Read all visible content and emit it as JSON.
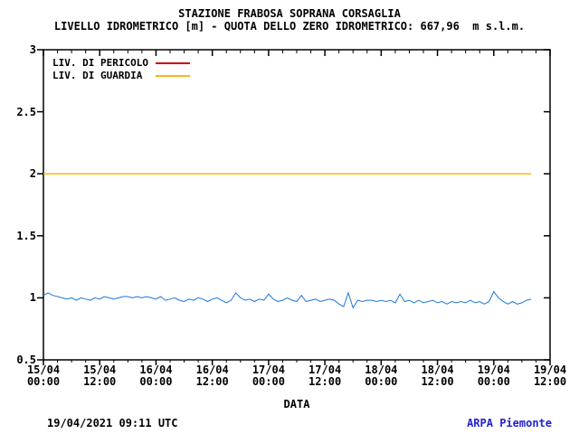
{
  "header": {
    "title": "STAZIONE FRABOSA SOPRANA CORSAGLIA",
    "subtitle": "LIVELLO IDROMETRICO [m] - QUOTA DELLO ZERO IDROMETRICO: 667,96  m s.l.m."
  },
  "footer": {
    "timestamp": "19/04/2021 09:11 UTC",
    "brand": "ARPA Piemonte",
    "brand_color": "#2222cc"
  },
  "chart_data": {
    "type": "line",
    "title": "STAZIONE FRABOSA SOPRANA CORSAGLIA",
    "subtitle": "LIVELLO IDROMETRICO [m] - QUOTA DELLO ZERO IDROMETRICO: 667,96  m s.l.m.",
    "xlabel": "DATA",
    "ylim": [
      0.5,
      3.0
    ],
    "yticks": [
      0.5,
      1,
      1.5,
      2,
      2.5,
      3
    ],
    "x_total_hours": 108,
    "xtick_every_hours": 12,
    "minor_tick_every_hours": 3,
    "xticks": [
      {
        "date": "15/04",
        "time": "00:00"
      },
      {
        "date": "15/04",
        "time": "12:00"
      },
      {
        "date": "16/04",
        "time": "00:00"
      },
      {
        "date": "16/04",
        "time": "12:00"
      },
      {
        "date": "17/04",
        "time": "00:00"
      },
      {
        "date": "17/04",
        "time": "12:00"
      },
      {
        "date": "18/04",
        "time": "00:00"
      },
      {
        "date": "18/04",
        "time": "12:00"
      },
      {
        "date": "19/04",
        "time": "00:00"
      },
      {
        "date": "19/04",
        "time": "12:00"
      }
    ],
    "grid": false,
    "legend_position": "top-left",
    "thresholds": [
      {
        "name": "LIV. DI PERICOLO",
        "color": "#cc0000",
        "value": null
      },
      {
        "name": "LIV. DI GUARDIA",
        "color": "#ffb412",
        "value": 2.0
      }
    ],
    "series": [
      {
        "name": "LIVELLO IDROMETRICO",
        "color": "#1e78d4",
        "x_start_hour": 0,
        "x_step_hours": 1,
        "values": [
          1.02,
          1.04,
          1.02,
          1.01,
          1.0,
          0.99,
          1.0,
          0.98,
          1.0,
          0.99,
          0.98,
          1.0,
          0.99,
          1.01,
          1.0,
          0.99,
          1.0,
          1.01,
          1.01,
          1.0,
          1.01,
          1.0,
          1.01,
          1.0,
          0.99,
          1.01,
          0.98,
          0.99,
          1.0,
          0.98,
          0.97,
          0.99,
          0.98,
          1.0,
          0.99,
          0.97,
          0.99,
          1.0,
          0.98,
          0.96,
          0.98,
          1.04,
          1.0,
          0.98,
          0.99,
          0.97,
          0.99,
          0.98,
          1.03,
          0.99,
          0.97,
          0.98,
          1.0,
          0.98,
          0.97,
          1.02,
          0.97,
          0.98,
          0.99,
          0.97,
          0.98,
          0.99,
          0.98,
          0.95,
          0.93,
          1.04,
          0.92,
          0.98,
          0.97,
          0.98,
          0.98,
          0.97,
          0.98,
          0.97,
          0.98,
          0.96,
          1.03,
          0.97,
          0.98,
          0.96,
          0.98,
          0.96,
          0.97,
          0.98,
          0.96,
          0.97,
          0.95,
          0.97,
          0.96,
          0.97,
          0.96,
          0.98,
          0.96,
          0.97,
          0.95,
          0.97,
          1.05,
          1.0,
          0.97,
          0.95,
          0.97,
          0.95,
          0.96,
          0.98,
          0.99
        ]
      }
    ]
  }
}
